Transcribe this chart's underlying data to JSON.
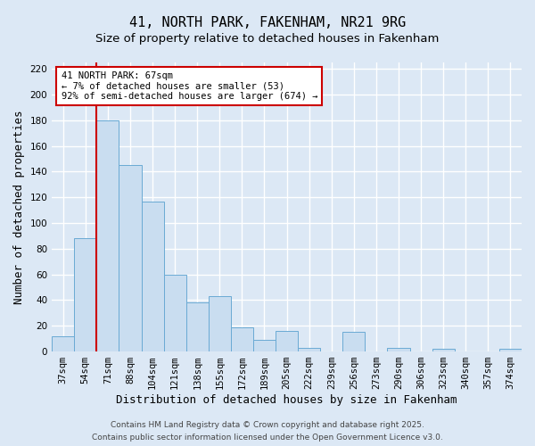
{
  "title": "41, NORTH PARK, FAKENHAM, NR21 9RG",
  "subtitle": "Size of property relative to detached houses in Fakenham",
  "xlabel": "Distribution of detached houses by size in Fakenham",
  "ylabel": "Number of detached properties",
  "bin_labels": [
    "37sqm",
    "54sqm",
    "71sqm",
    "88sqm",
    "104sqm",
    "121sqm",
    "138sqm",
    "155sqm",
    "172sqm",
    "189sqm",
    "205sqm",
    "222sqm",
    "239sqm",
    "256sqm",
    "273sqm",
    "290sqm",
    "306sqm",
    "323sqm",
    "340sqm",
    "357sqm",
    "374sqm"
  ],
  "bar_heights": [
    12,
    88,
    180,
    145,
    117,
    60,
    38,
    43,
    19,
    9,
    16,
    3,
    0,
    15,
    0,
    3,
    0,
    2,
    0,
    0,
    2
  ],
  "bar_color": "#c9ddf0",
  "bar_edge_color": "#6aaad4",
  "vline_x_index": 2,
  "vline_color": "#cc0000",
  "ylim": [
    0,
    225
  ],
  "yticks": [
    0,
    20,
    40,
    60,
    80,
    100,
    120,
    140,
    160,
    180,
    200,
    220
  ],
  "annotation_title": "41 NORTH PARK: 67sqm",
  "annotation_line1": "← 7% of detached houses are smaller (53)",
  "annotation_line2": "92% of semi-detached houses are larger (674) →",
  "annotation_box_color": "#ffffff",
  "annotation_box_edge": "#cc0000",
  "footer1": "Contains HM Land Registry data © Crown copyright and database right 2025.",
  "footer2": "Contains public sector information licensed under the Open Government Licence v3.0.",
  "background_color": "#dce8f5",
  "plot_background_color": "#dce8f5",
  "grid_color": "#ffffff",
  "title_fontsize": 11,
  "subtitle_fontsize": 9.5,
  "axis_label_fontsize": 9,
  "tick_fontsize": 7.5,
  "footer_fontsize": 6.5
}
